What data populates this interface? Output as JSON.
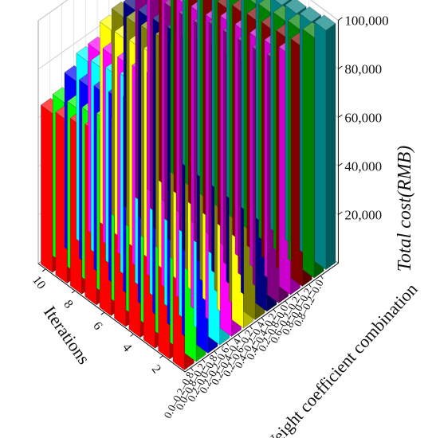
{
  "chart_data": {
    "type": "bar3d",
    "z_label": "Total cost(RMB)",
    "x_label": "Iterations",
    "y_label": "Weight coefficient combination",
    "z_ticks": [
      "20,000",
      "40,000",
      "60,000",
      "80,000",
      "100,000"
    ],
    "z_tick_values": [
      20000,
      40000,
      60000,
      80000,
      100000
    ],
    "zlim": [
      0,
      100000
    ],
    "x_tick_labels": [
      "2",
      "4",
      "6",
      "8",
      "10"
    ],
    "x_tick_values": [
      2,
      4,
      6,
      8,
      10
    ],
    "iterations": [
      1,
      2,
      3,
      4,
      5,
      6,
      7,
      8,
      9,
      10
    ],
    "grid": true,
    "series": [
      {
        "label": "0.0–0.2–0.8",
        "color": "#ff0000",
        "values": [
          93500,
          90000,
          87500,
          85000,
          83500,
          73000,
          71000,
          69000,
          67000,
          65500
        ]
      },
      {
        "label": "0.0–0.8–0.2",
        "color": "#00ff00",
        "values": [
          92500,
          88500,
          86000,
          84000,
          81500,
          74500,
          72000,
          70000,
          68000,
          66500
        ]
      },
      {
        "label": "0.2–0.0–0.8",
        "color": "#0000ff",
        "values": [
          98000,
          94500,
          91500,
          88500,
          86000,
          80000,
          77500,
          75500,
          73500,
          72000
        ]
      },
      {
        "label": "0.2–0.2–0.6",
        "color": "#00ffff",
        "values": [
          97000,
          95000,
          92000,
          89000,
          87000,
          83500,
          81500,
          79500,
          78000,
          76500
        ]
      },
      {
        "label": "0.2–0.4–0.4",
        "color": "#ff00ff",
        "values": [
          94000,
          92000,
          90000,
          88500,
          87000,
          83000,
          81500,
          80500,
          79500,
          77000
        ]
      },
      {
        "label": "0.2–0.6–0.2",
        "color": "#ffff00",
        "values": [
          98000,
          95500,
          93500,
          91500,
          90000,
          86500,
          85000,
          84000,
          83000,
          82500
        ]
      },
      {
        "label": "0.4–0.2–0.4",
        "color": "#808000",
        "values": [
          96500,
          95500,
          94000,
          92500,
          91500,
          88500,
          87500,
          86500,
          85500,
          84500
        ]
      },
      {
        "label": "0.4–0.4–0.2",
        "color": "#000080",
        "values": [
          96000,
          95000,
          93500,
          92500,
          91000,
          88000,
          87000,
          86000,
          85000,
          84000
        ]
      },
      {
        "label": "0.2–0.8–0.0",
        "color": "#800080",
        "values": [
          99000,
          97500,
          96500,
          95500,
          94500,
          90500,
          89500,
          89000,
          88500,
          88000
        ]
      },
      {
        "label": "0.6–0.2–0.2",
        "color": "#cc00cc",
        "values": [
          98500,
          97000,
          95500,
          94500,
          93500,
          89500,
          88500,
          87500,
          86500,
          86000
        ]
      },
      {
        "label": "0.8–0.0–0.2",
        "color": "#800000",
        "values": [
          98500,
          97500,
          96500,
          95500,
          94500,
          91500,
          90500,
          90000,
          89500,
          89000
        ]
      },
      {
        "label": "0.8–0.2–0.0",
        "color": "#008000",
        "values": [
          99000,
          98000,
          97000,
          96000,
          95000,
          92500,
          91500,
          91000,
          90500,
          90000
        ]
      },
      {
        "label": "",
        "color": "#008080",
        "values": [
          98500,
          97500,
          96500,
          95500,
          94500,
          92500,
          91500,
          90500,
          90000,
          89500
        ]
      }
    ],
    "y_tick_labels": [
      "0.0–0.2–0.8",
      "0.0–0.8–0.2",
      "0.2–0.0–0.8",
      "0.2–0.2–0.6",
      "0.2–0.4–0.4",
      "0.2–0.6–0.2",
      "0.4–0.2–0.4",
      "0.4–0.4–0.2",
      "0.2–0.8–0.0",
      "0.6–0.2–0.2",
      "0.8–0.0–0.2",
      "0.8–0.2–0.0"
    ]
  }
}
